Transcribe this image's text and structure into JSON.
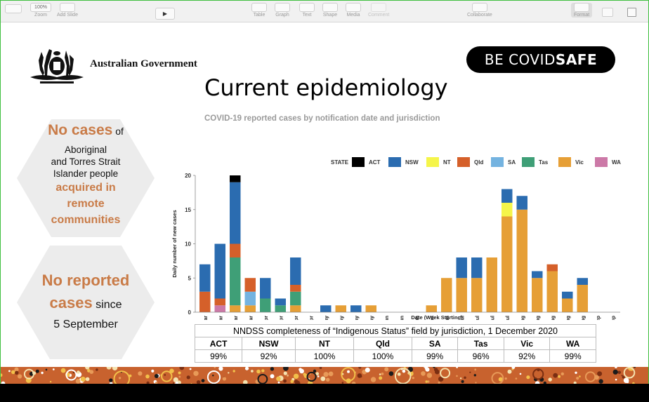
{
  "toolbar": {
    "zoom_value": "100%",
    "items": [
      {
        "label": "Zoom",
        "icon": "zoom-icon"
      },
      {
        "label": "Add Slide",
        "icon": "add-slide-icon"
      },
      {
        "label": "Table",
        "icon": "table-icon"
      },
      {
        "label": "Graph",
        "icon": "graph-icon"
      },
      {
        "label": "Text",
        "icon": "text-icon"
      },
      {
        "label": "Shape",
        "icon": "shape-icon"
      },
      {
        "label": "Media",
        "icon": "media-icon"
      },
      {
        "label": "Comment",
        "icon": "comment-icon"
      },
      {
        "label": "Collaborate",
        "icon": "collaborate-icon"
      },
      {
        "label": "Format",
        "icon": "format-icon"
      }
    ]
  },
  "slide": {
    "govt_text": "Australian Government",
    "campaign_logo": {
      "part1": "BE COVID",
      "part2": "SAFE"
    },
    "title": "Current epidemiology",
    "subtitle": "COVID-19 reported cases by notification date and jurisdiction",
    "hex1": {
      "line1_orange": "No cases",
      "line1_dark": " of",
      "line2": "Aboriginal",
      "line3": "and Torres Strait",
      "line4": "Islander people",
      "line5_orange": "acquired in",
      "line6_orange": "remote",
      "line7_orange": "communities"
    },
    "hex2": {
      "line1_orange": "No reported",
      "line2_orange": "cases",
      "line2_dark": " since",
      "line3": "5 September"
    },
    "completeness_table": {
      "caption": "NNDSS completeness of “Indigenous Status” field by jurisdiction, 1 December 2020",
      "headers": [
        "ACT",
        "NSW",
        "NT",
        "Qld",
        "SA",
        "Tas",
        "Vic",
        "WA"
      ],
      "values": [
        "99%",
        "92%",
        "100%",
        "100%",
        "99%",
        "96%",
        "92%",
        "99%"
      ]
    }
  },
  "chart_data": {
    "type": "bar",
    "stacked": true,
    "title": "COVID-19 reported cases by notification date and jurisdiction",
    "xlabel": "Date (Week Starting)",
    "ylabel": "Daily number of new cases",
    "ylim": [
      0,
      20
    ],
    "yticks": [
      0,
      5,
      10,
      15,
      20
    ],
    "legend_title": "STATE",
    "legend_position": "top-right",
    "categories": [
      "09 Mar",
      "16 Mar",
      "23 Mar",
      "30 Mar",
      "06 Apr",
      "13 Apr",
      "20 Apr",
      "27 Apr",
      "04 May",
      "11 May",
      "18 May",
      "25 May",
      "01 Jun",
      "08 Jun",
      "15 Jun",
      "22 Jun",
      "29 Jun",
      "06 Jul",
      "13 Jul",
      "20 Jul",
      "27 Jul",
      "03 Aug",
      "10 Aug",
      "17 Aug",
      "24 Aug",
      "31 Aug",
      "07 Sep",
      "14 Sep"
    ],
    "series": [
      {
        "name": "WA",
        "color": "#cc79a7",
        "values": [
          0,
          1,
          0,
          0,
          0,
          0,
          0,
          0,
          0,
          0,
          0,
          0,
          0,
          0,
          0,
          0,
          0,
          0,
          0,
          0,
          0,
          0,
          0,
          0,
          0,
          0,
          0,
          0
        ]
      },
      {
        "name": "Vic",
        "color": "#e69f36",
        "values": [
          0,
          0,
          1,
          1,
          0,
          0,
          1,
          0,
          0,
          1,
          0,
          1,
          0,
          0,
          0,
          1,
          5,
          5,
          5,
          8,
          14,
          15,
          5,
          6,
          2,
          4,
          0,
          0
        ]
      },
      {
        "name": "Tas",
        "color": "#3f9f77",
        "values": [
          0,
          0,
          7,
          0,
          2,
          1,
          2,
          0,
          0,
          0,
          0,
          0,
          0,
          0,
          0,
          0,
          0,
          0,
          0,
          0,
          0,
          0,
          0,
          0,
          0,
          0,
          0,
          0
        ]
      },
      {
        "name": "SA",
        "color": "#74b3e0",
        "values": [
          0,
          0,
          0,
          2,
          0,
          0,
          0,
          0,
          0,
          0,
          0,
          0,
          0,
          0,
          0,
          0,
          0,
          0,
          0,
          0,
          0,
          0,
          0,
          0,
          0,
          0,
          0,
          0
        ]
      },
      {
        "name": "Qld",
        "color": "#d5602a",
        "values": [
          3,
          1,
          2,
          2,
          0,
          0,
          1,
          0,
          0,
          0,
          0,
          0,
          0,
          0,
          0,
          0,
          0,
          0,
          0,
          0,
          0,
          0,
          0,
          1,
          0,
          0,
          0,
          0
        ]
      },
      {
        "name": "NT",
        "color": "#f5f54a",
        "values": [
          0,
          0,
          0,
          0,
          0,
          0,
          0,
          0,
          0,
          0,
          0,
          0,
          0,
          0,
          0,
          0,
          0,
          0,
          0,
          0,
          2,
          0,
          0,
          0,
          0,
          0,
          0,
          0
        ]
      },
      {
        "name": "NSW",
        "color": "#2b6cb0",
        "values": [
          4,
          8,
          9,
          0,
          3,
          1,
          4,
          0,
          1,
          0,
          1,
          0,
          0,
          0,
          0,
          0,
          0,
          3,
          3,
          0,
          2,
          2,
          1,
          0,
          1,
          1,
          0,
          0
        ]
      },
      {
        "name": "ACT",
        "color": "#000000",
        "values": [
          0,
          0,
          1,
          0,
          0,
          0,
          0,
          0,
          0,
          0,
          0,
          0,
          0,
          0,
          0,
          0,
          0,
          0,
          0,
          0,
          0,
          0,
          0,
          0,
          0,
          0,
          0,
          0
        ]
      }
    ],
    "legend_order": [
      "ACT",
      "NSW",
      "NT",
      "Qld",
      "SA",
      "Tas",
      "Vic",
      "WA"
    ]
  }
}
